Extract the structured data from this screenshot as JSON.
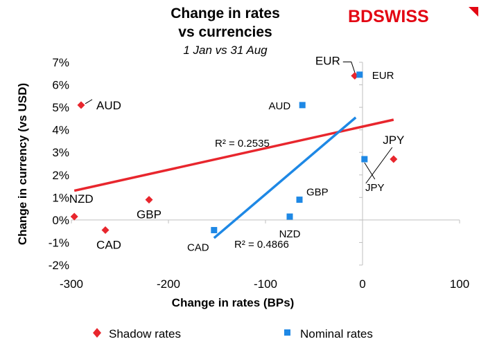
{
  "brand": {
    "text": "BDSWISS",
    "accent_color": "#e30613"
  },
  "chart_data": {
    "type": "scatter",
    "title_lines": [
      "Change in rates",
      "vs currencies"
    ],
    "subtitle": "1 Jan vs 31 Aug",
    "xlabel": "Change in rates (BPs)",
    "ylabel": "Change in currency (vs USD)",
    "xlim": [
      -300,
      100
    ],
    "ylim": [
      -2,
      7
    ],
    "x_ticks": [
      -300,
      -200,
      -100,
      0,
      100
    ],
    "x_tick_labels": [
      "-300",
      "-200",
      "-100",
      "0",
      "100"
    ],
    "y_ticks": [
      -2,
      -1,
      0,
      1,
      2,
      3,
      4,
      5,
      6,
      7
    ],
    "y_tick_labels": [
      "-2%",
      "-1%",
      "0%",
      "1%",
      "2%",
      "3%",
      "4%",
      "5%",
      "6%",
      "7%"
    ],
    "grid": false,
    "legend_position": "bottom",
    "series": [
      {
        "name": "Shadow rates",
        "marker": "diamond",
        "color": "#e8262d",
        "points": [
          {
            "label": "EUR",
            "x": -8,
            "y": 6.4
          },
          {
            "label": "AUD",
            "x": -290,
            "y": 5.1
          },
          {
            "label": "JPY",
            "x": 32,
            "y": 2.7
          },
          {
            "label": "GBP",
            "x": -220,
            "y": 0.9
          },
          {
            "label": "NZD",
            "x": -297,
            "y": 0.15
          },
          {
            "label": "CAD",
            "x": -265,
            "y": -0.45
          }
        ],
        "trendline": {
          "x": [
            -297,
            32
          ],
          "y": [
            1.3,
            4.45
          ],
          "color": "#e8262d",
          "r2_label": "R² = 0.2535"
        }
      },
      {
        "name": "Nominal rates",
        "marker": "square",
        "color": "#1e88e5",
        "points": [
          {
            "label": "EUR",
            "x": -3,
            "y": 6.45
          },
          {
            "label": "AUD",
            "x": -62,
            "y": 5.1
          },
          {
            "label": "JPY",
            "x": 2,
            "y": 2.7
          },
          {
            "label": "GBP",
            "x": -65,
            "y": 0.9
          },
          {
            "label": "NZD",
            "x": -75,
            "y": 0.15
          },
          {
            "label": "CAD",
            "x": -153,
            "y": -0.45
          }
        ],
        "trendline": {
          "x": [
            -153,
            -7
          ],
          "y": [
            -0.8,
            4.55
          ],
          "color": "#1e88e5",
          "r2_label": "R² = 0.4866"
        }
      }
    ]
  }
}
